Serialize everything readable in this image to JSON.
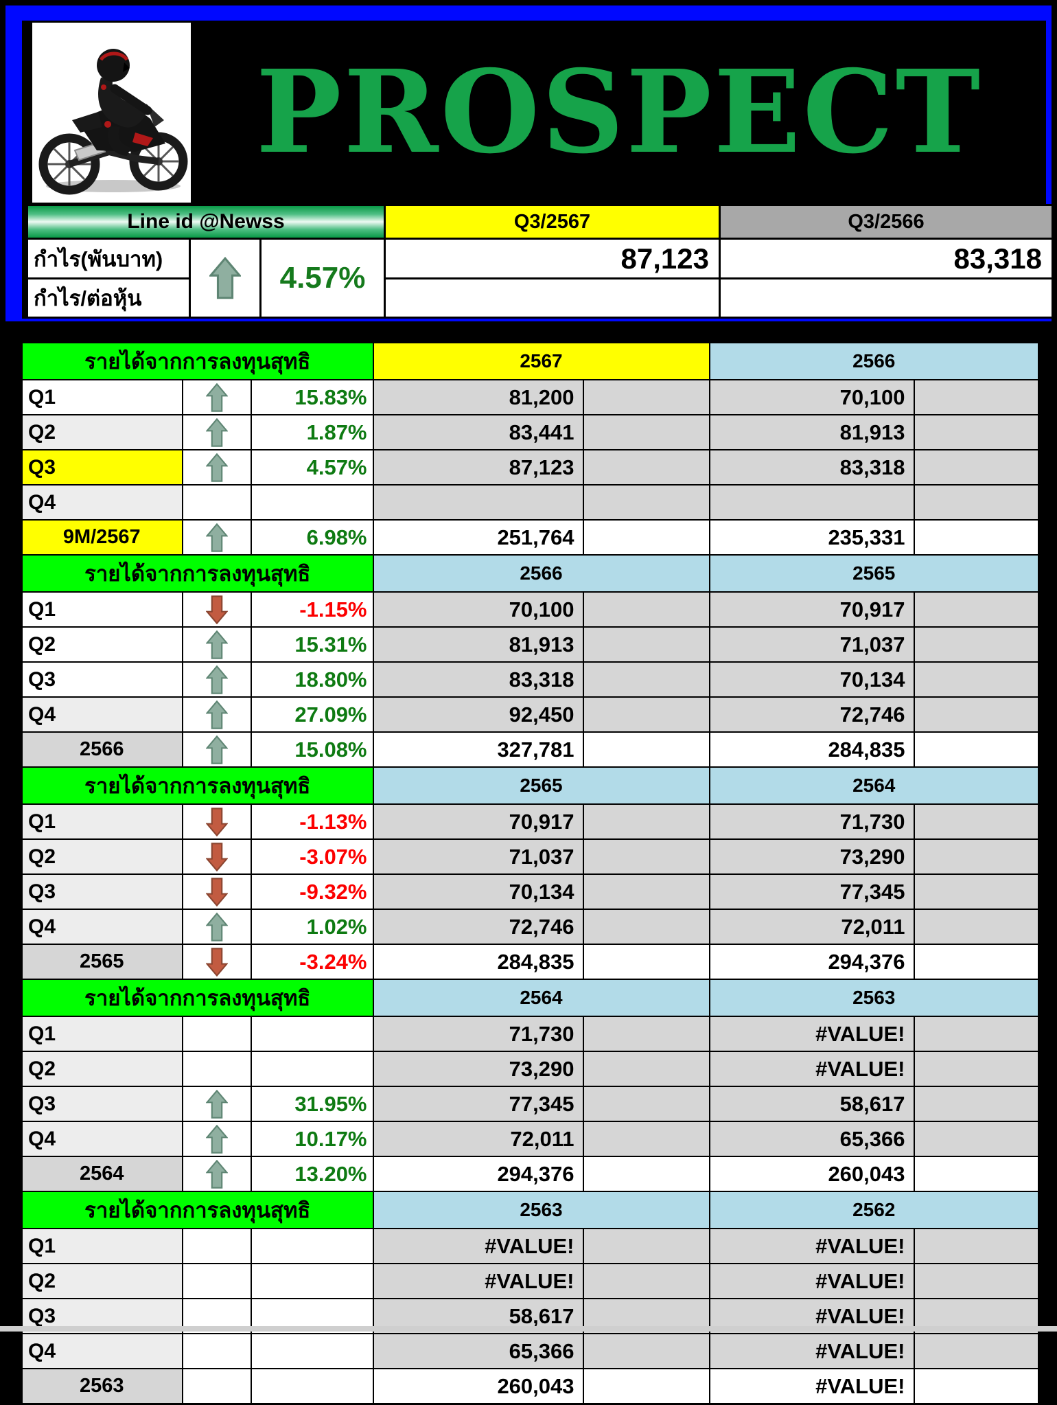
{
  "banner": {
    "title": "PROSPECT",
    "logo": "motorcycle-rider-logo"
  },
  "summary_card": {
    "line_id": "Line id @Newss",
    "col_current": "Q3/2567",
    "col_prior": "Q3/2566",
    "row_label_1": "กำไร(พันบาท)",
    "row_label_2": "กำไร/ต่อหุ้น",
    "direction": "up",
    "change_pct": "4.57%",
    "current_value": "87,123",
    "prior_value": "83,318"
  },
  "table": {
    "section_title": "รายได้จากการลงทุนสุทธิ",
    "sections": [
      {
        "year_left": "2567",
        "year_left_style": "yellow",
        "year_right": "2566",
        "rows": [
          {
            "label": "Q1",
            "label_bg": "white",
            "dir": "up",
            "pct": "15.83%",
            "v1": "81,200",
            "v2": "70,100",
            "summary": false
          },
          {
            "label": "Q2",
            "label_bg": "band",
            "dir": "up",
            "pct": "1.87%",
            "v1": "83,441",
            "v2": "81,913",
            "summary": false
          },
          {
            "label": "Q3",
            "label_bg": "yellow",
            "dir": "up",
            "pct": "4.57%",
            "v1": "87,123",
            "v2": "83,318",
            "summary": false
          },
          {
            "label": "Q4",
            "label_bg": "band",
            "dir": null,
            "pct": "",
            "v1": "",
            "v2": "",
            "summary": false
          },
          {
            "label": "9M/2567",
            "label_bg": "yellow",
            "dir": "up",
            "pct": "6.98%",
            "v1": "251,764",
            "v2": "235,331",
            "summary": true
          }
        ]
      },
      {
        "year_left": "2566",
        "year_left_style": "blue",
        "year_right": "2565",
        "rows": [
          {
            "label": "Q1",
            "label_bg": "white",
            "dir": "down",
            "pct": "-1.15%",
            "v1": "70,100",
            "v2": "70,917",
            "summary": false
          },
          {
            "label": "Q2",
            "label_bg": "white",
            "dir": "up",
            "pct": "15.31%",
            "v1": "81,913",
            "v2": "71,037",
            "summary": false
          },
          {
            "label": "Q3",
            "label_bg": "white",
            "dir": "up",
            "pct": "18.80%",
            "v1": "83,318",
            "v2": "70,134",
            "summary": false
          },
          {
            "label": "Q4",
            "label_bg": "band",
            "dir": "up",
            "pct": "27.09%",
            "v1": "92,450",
            "v2": "72,746",
            "summary": false
          },
          {
            "label": "2566",
            "label_bg": "sum",
            "dir": "up",
            "pct": "15.08%",
            "v1": "327,781",
            "v2": "284,835",
            "summary": true
          }
        ]
      },
      {
        "year_left": "2565",
        "year_left_style": "blue",
        "year_right": "2564",
        "rows": [
          {
            "label": "Q1",
            "label_bg": "band",
            "dir": "down",
            "pct": "-1.13%",
            "v1": "70,917",
            "v2": "71,730",
            "summary": false
          },
          {
            "label": "Q2",
            "label_bg": "band",
            "dir": "down",
            "pct": "-3.07%",
            "v1": "71,037",
            "v2": "73,290",
            "summary": false
          },
          {
            "label": "Q3",
            "label_bg": "band",
            "dir": "down",
            "pct": "-9.32%",
            "v1": "70,134",
            "v2": "77,345",
            "summary": false
          },
          {
            "label": "Q4",
            "label_bg": "band",
            "dir": "up",
            "pct": "1.02%",
            "v1": "72,746",
            "v2": "72,011",
            "summary": false
          },
          {
            "label": "2565",
            "label_bg": "sum",
            "dir": "down",
            "pct": "-3.24%",
            "v1": "284,835",
            "v2": "294,376",
            "summary": true
          }
        ]
      },
      {
        "year_left": "2564",
        "year_left_style": "blue",
        "year_right": "2563",
        "rows": [
          {
            "label": "Q1",
            "label_bg": "band",
            "dir": null,
            "pct": "",
            "v1": "71,730",
            "v2": "#VALUE!",
            "summary": false
          },
          {
            "label": "Q2",
            "label_bg": "band",
            "dir": null,
            "pct": "",
            "v1": "73,290",
            "v2": "#VALUE!",
            "summary": false
          },
          {
            "label": "Q3",
            "label_bg": "band",
            "dir": "up",
            "pct": "31.95%",
            "v1": "77,345",
            "v2": "58,617",
            "summary": false
          },
          {
            "label": "Q4",
            "label_bg": "band",
            "dir": "up",
            "pct": "10.17%",
            "v1": "72,011",
            "v2": "65,366",
            "summary": false
          },
          {
            "label": "2564",
            "label_bg": "sum",
            "dir": "up",
            "pct": "13.20%",
            "v1": "294,376",
            "v2": "260,043",
            "summary": true
          }
        ]
      },
      {
        "year_left": "2563",
        "year_left_style": "blue",
        "year_right": "2562",
        "rows": [
          {
            "label": "Q1",
            "label_bg": "band",
            "dir": null,
            "pct": "",
            "v1": "#VALUE!",
            "v2": "#VALUE!",
            "summary": false
          },
          {
            "label": "Q2",
            "label_bg": "band",
            "dir": null,
            "pct": "",
            "v1": "#VALUE!",
            "v2": "#VALUE!",
            "summary": false
          },
          {
            "label": "Q3",
            "label_bg": "band",
            "dir": null,
            "pct": "",
            "v1": "58,617",
            "v2": "#VALUE!",
            "summary": false
          },
          {
            "label": "Q4",
            "label_bg": "band",
            "dir": null,
            "pct": "",
            "v1": "65,366",
            "v2": "#VALUE!",
            "summary": false
          },
          {
            "label": "2563",
            "label_bg": "sum",
            "dir": null,
            "pct": "",
            "v1": "260,043",
            "v2": "#VALUE!",
            "summary": true
          }
        ]
      }
    ]
  },
  "colors": {
    "frame_blue": "#0008ff",
    "banner_black": "#000000",
    "title_green": "#16a34a",
    "section_header_green": "#00ff00",
    "highlight_yellow": "#ffff00",
    "year_light_blue": "#b2dbe8",
    "prior_header_gray": "#a8a8a8",
    "value_cell_gray": "#d6d6d6",
    "band_row_gray": "#ededed",
    "positive_green": "#0e7a12",
    "negative_red": "#fc0000",
    "up_arrow_fill": "#8fafa0",
    "down_arrow_fill": "#c25b41"
  }
}
